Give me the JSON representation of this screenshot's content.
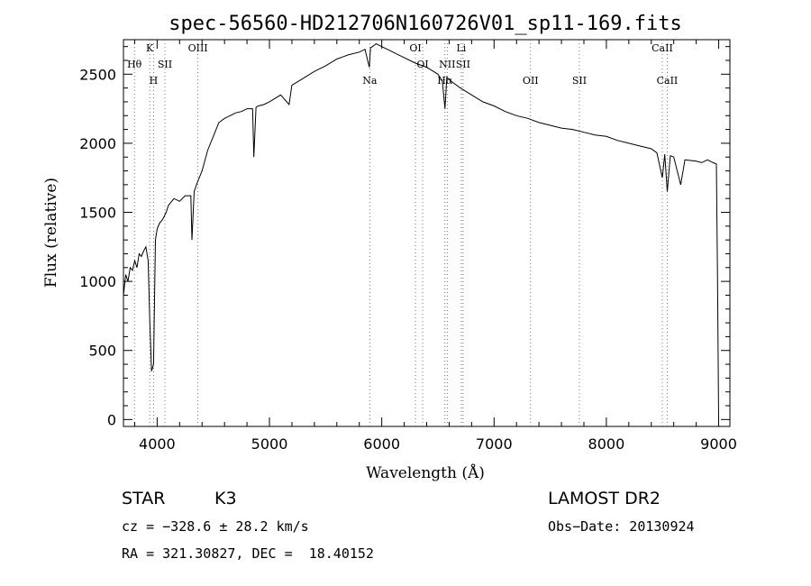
{
  "chart_data": {
    "type": "line",
    "title": "spec-56560-HD212706N160726V01_sp11-169.fits",
    "xlabel": "Wavelength (Å)",
    "ylabel": "Flux (relative)",
    "xlim": [
      3700,
      9100
    ],
    "ylim": [
      -50,
      2750
    ],
    "xticks": [
      4000,
      5000,
      6000,
      7000,
      8000,
      9000
    ],
    "yticks": [
      0,
      500,
      1000,
      1500,
      2000,
      2500
    ],
    "grid": false,
    "series": [
      {
        "x": [
          3700,
          3720,
          3740,
          3760,
          3780,
          3800,
          3820,
          3840,
          3860,
          3880,
          3900,
          3920,
          3935,
          3950,
          3968,
          3985,
          4000,
          4020,
          4050,
          4080,
          4100,
          4150,
          4200,
          4250,
          4300,
          4310,
          4330,
          4350,
          4400,
          4450,
          4500,
          4550,
          4600,
          4650,
          4700,
          4750,
          4800,
          4850,
          4861,
          4880,
          4900,
          4950,
          5000,
          5100,
          5175,
          5200,
          5300,
          5400,
          5500,
          5600,
          5700,
          5800,
          5850,
          5890,
          5900,
          5950,
          6000,
          6050,
          6100,
          6150,
          6200,
          6250,
          6300,
          6400,
          6500,
          6540,
          6563,
          6580,
          6600,
          6700,
          6800,
          6900,
          7000,
          7100,
          7200,
          7300,
          7400,
          7500,
          7600,
          7700,
          7800,
          7900,
          8000,
          8100,
          8200,
          8300,
          8400,
          8450,
          8498,
          8520,
          8542,
          8570,
          8600,
          8662,
          8700,
          8800,
          8850,
          8900,
          8950,
          8980,
          8990,
          9000
        ],
        "values": [
          900,
          1050,
          1000,
          1100,
          1080,
          1150,
          1100,
          1200,
          1180,
          1220,
          1250,
          1150,
          700,
          350,
          400,
          1300,
          1380,
          1420,
          1450,
          1500,
          1550,
          1600,
          1580,
          1620,
          1620,
          1300,
          1650,
          1700,
          1800,
          1950,
          2050,
          2150,
          2180,
          2200,
          2220,
          2230,
          2250,
          2250,
          1900,
          2260,
          2270,
          2280,
          2300,
          2350,
          2280,
          2420,
          2470,
          2520,
          2560,
          2610,
          2640,
          2660,
          2680,
          2550,
          2690,
          2720,
          2700,
          2680,
          2660,
          2640,
          2620,
          2600,
          2580,
          2550,
          2500,
          2450,
          2250,
          2480,
          2460,
          2400,
          2350,
          2300,
          2270,
          2230,
          2200,
          2180,
          2150,
          2130,
          2110,
          2100,
          2080,
          2060,
          2050,
          2020,
          2000,
          1980,
          1960,
          1930,
          1750,
          1920,
          1650,
          1910,
          1900,
          1700,
          1880,
          1870,
          1860,
          1880,
          1860,
          1850,
          1000,
          0
        ]
      }
    ],
    "lines": [
      {
        "label": "Hθ",
        "x": 3798
      },
      {
        "label": "K",
        "x": 3934
      },
      {
        "label": "H",
        "x": 3968
      },
      {
        "label": "SII",
        "x": 4069
      },
      {
        "label": "OIII",
        "x": 4363
      },
      {
        "label": "Na",
        "x": 5893
      },
      {
        "label": "OI",
        "x": 6300
      },
      {
        "label": "OI",
        "x": 6364
      },
      {
        "label": "Hα",
        "x": 6563
      },
      {
        "label": "NII",
        "x": 6583
      },
      {
        "label": "Li",
        "x": 6708
      },
      {
        "label": "SII",
        "x": 6724
      },
      {
        "label": "OII",
        "x": 7325
      },
      {
        "label": "SII",
        "x": 7760
      },
      {
        "label": "CaII",
        "x": 8498
      },
      {
        "label": "CaII",
        "x": 8542
      }
    ]
  },
  "info": {
    "object_class": "STAR",
    "subclass": "K3",
    "survey": "LAMOST DR2",
    "cz": "cz = −328.6 ± 28.2 km/s",
    "obs_date": "Obs−Date: 20130924",
    "coords": "RA = 321.30827, DEC =  18.40152"
  }
}
